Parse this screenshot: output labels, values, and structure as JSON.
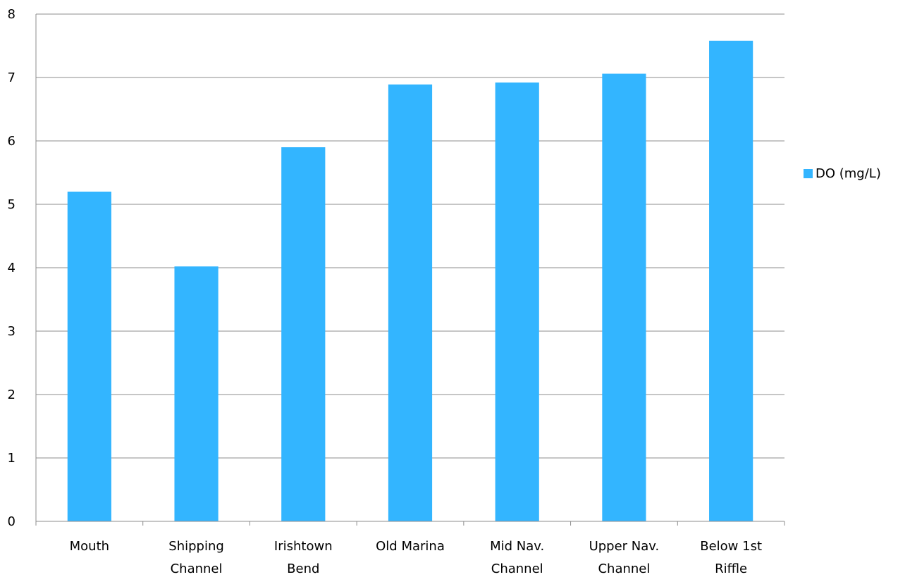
{
  "chart_data": {
    "type": "bar",
    "categories": [
      [
        "Mouth"
      ],
      [
        "Shipping",
        "Channel"
      ],
      [
        "Irishtown",
        "Bend"
      ],
      [
        "Old Marina"
      ],
      [
        "Mid Nav.",
        "Channel"
      ],
      [
        "Upper Nav.",
        "Channel"
      ],
      [
        "Below 1st",
        "Riffle"
      ]
    ],
    "series": [
      {
        "name": "DO (mg/L)",
        "values": [
          5.2,
          4.02,
          5.9,
          6.89,
          6.92,
          7.06,
          7.58
        ],
        "color": "#33B5FF"
      }
    ],
    "ylim": [
      0,
      8
    ],
    "yticks": [
      0,
      1,
      2,
      3,
      4,
      5,
      6,
      7,
      8
    ],
    "title": "",
    "xlabel": "",
    "ylabel": "",
    "grid": true,
    "legend_position": "right"
  }
}
